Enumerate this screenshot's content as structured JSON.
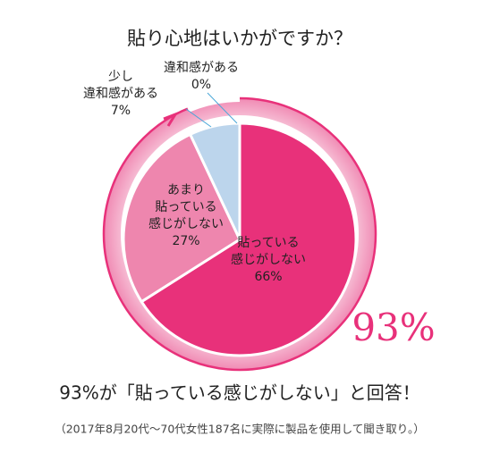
{
  "chart_data": {
    "type": "pie",
    "title": "貼り心地はいかがですか？",
    "categories": [
      "貼っている\n感じがしない",
      "あまり\n貼っている\n感じがしない",
      "少し\n違和感がある",
      "違和感がある"
    ],
    "values": [
      66,
      27,
      7,
      0
    ],
    "value_labels": [
      "66%",
      "27%",
      "7%",
      "0%"
    ],
    "colors": [
      "#e8317a",
      "#ee86ae",
      "#bcd5ec",
      "#bcd5ec"
    ],
    "annotation": "93%",
    "conclusion": "93%が「貼っている感じがしない」と回答！",
    "note": "（2017年8月20代〜70代女性187名に実際に製品を使用して聞き取り。）"
  }
}
